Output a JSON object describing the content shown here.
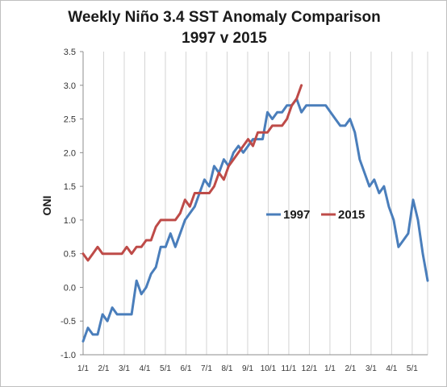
{
  "chart_data": {
    "type": "line",
    "title": "Weekly Niño 3.4 SST Anomaly Comparison",
    "subtitle": "1997 v 2015",
    "ylabel": "ONI",
    "xlabel": "",
    "ylim": [
      -1.0,
      3.5
    ],
    "yticks": [
      "3.5",
      "3.0",
      "2.5",
      "2.0",
      "1.5",
      "1.0",
      "0.5",
      "0.0",
      "-0.5",
      "-1.0"
    ],
    "x_tick_labels": [
      "1/1",
      "2/1",
      "3/1",
      "4/1",
      "5/1",
      "6/1",
      "7/1",
      "8/1",
      "9/1",
      "10/1",
      "11/1",
      "12/1",
      "1/1",
      "2/1",
      "3/1",
      "4/1",
      "5/1"
    ],
    "x_unit": "week",
    "grid": "vertical",
    "legend": "center-right",
    "series": [
      {
        "name": "1997",
        "color": "#4a7ebb",
        "values": [
          -0.8,
          -0.6,
          -0.7,
          -0.7,
          -0.4,
          -0.5,
          -0.3,
          -0.4,
          -0.4,
          -0.4,
          -0.4,
          0.1,
          -0.1,
          0.0,
          0.2,
          0.3,
          0.6,
          0.6,
          0.8,
          0.6,
          0.8,
          1.0,
          1.1,
          1.2,
          1.4,
          1.6,
          1.5,
          1.8,
          1.7,
          1.9,
          1.8,
          2.0,
          2.1,
          2.0,
          2.1,
          2.2,
          2.2,
          2.2,
          2.6,
          2.5,
          2.6,
          2.6,
          2.7,
          2.7,
          2.8,
          2.6,
          2.7,
          2.7,
          2.7,
          2.7,
          2.7,
          2.6,
          2.5,
          2.4,
          2.4,
          2.5,
          2.3,
          1.9,
          1.7,
          1.5,
          1.6,
          1.4,
          1.5,
          1.2,
          1.0,
          0.6,
          0.7,
          0.8,
          1.3,
          1.0,
          0.5,
          0.1
        ]
      },
      {
        "name": "2015",
        "color": "#be4b48",
        "values": [
          0.5,
          0.4,
          0.5,
          0.6,
          0.5,
          0.5,
          0.5,
          0.5,
          0.5,
          0.6,
          0.5,
          0.6,
          0.6,
          0.7,
          0.7,
          0.9,
          1.0,
          1.0,
          1.0,
          1.0,
          1.1,
          1.3,
          1.2,
          1.4,
          1.4,
          1.4,
          1.4,
          1.5,
          1.7,
          1.6,
          1.8,
          1.9,
          2.0,
          2.1,
          2.2,
          2.1,
          2.3,
          2.3,
          2.3,
          2.4,
          2.4,
          2.4,
          2.5,
          2.7,
          2.8,
          3.0
        ]
      }
    ]
  }
}
